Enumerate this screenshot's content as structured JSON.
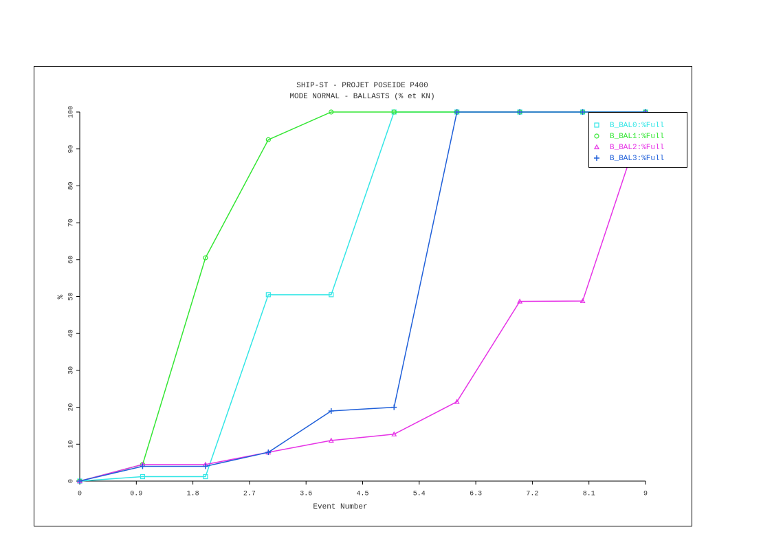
{
  "chart_data": {
    "type": "line",
    "title": "SHIP-ST - PROJET POSEIDE P400",
    "subtitle": "MODE NORMAL - BALLASTS (% et KN)",
    "x_label": "Event Number",
    "y_label": "%",
    "x": [
      0,
      1,
      2,
      3,
      4,
      5,
      6,
      7,
      8,
      9
    ],
    "xlim": [
      0,
      9
    ],
    "xticks": [
      0,
      0.9,
      1.8,
      2.7,
      3.6,
      4.5,
      5.4,
      6.3,
      7.2,
      8.1,
      9
    ],
    "ylim": [
      0,
      100
    ],
    "yticks": [
      0,
      10,
      20,
      30,
      40,
      50,
      60,
      70,
      80,
      90,
      100
    ],
    "legend": "upper right",
    "series": [
      {
        "name": "B_BAL0:%Full",
        "color": "#33e6e6",
        "marker": "square",
        "values": [
          0,
          1.2,
          1.2,
          50.5,
          50.5,
          100,
          100,
          100,
          100,
          100
        ]
      },
      {
        "name": "B_BAL1:%Full",
        "color": "#33e633",
        "marker": "circle",
        "values": [
          0,
          4.5,
          60.5,
          92.5,
          100,
          100,
          100,
          100,
          100,
          100
        ]
      },
      {
        "name": "B_BAL2:%Full",
        "color": "#e633e6",
        "marker": "triangle",
        "values": [
          0,
          4.5,
          4.5,
          7.8,
          11,
          12.7,
          21.5,
          48.7,
          48.8,
          100
        ]
      },
      {
        "name": "B_BAL3:%Full",
        "color": "#1f5fd9",
        "marker": "plus",
        "values": [
          0,
          4,
          4,
          7.8,
          19,
          20,
          100,
          100,
          100,
          100
        ]
      }
    ]
  }
}
